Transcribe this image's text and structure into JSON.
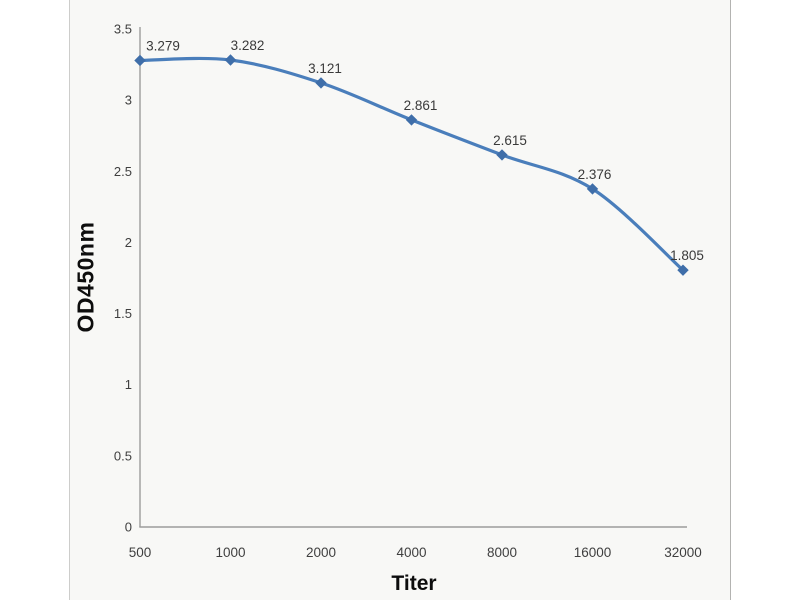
{
  "page": {
    "background_color": "#ffffff",
    "photo_background_color": "#f8f8f6"
  },
  "chart_data": {
    "type": "line",
    "title": "",
    "xlabel": "Titer",
    "ylabel": "OD450nm",
    "categories": [
      "500",
      "1000",
      "2000",
      "4000",
      "8000",
      "16000",
      "32000"
    ],
    "series": [
      {
        "name": "OD450nm",
        "values": [
          3.279,
          3.282,
          3.121,
          2.861,
          2.615,
          2.376,
          1.805
        ]
      }
    ],
    "point_labels": [
      "3.279",
      "3.282",
      "3.121",
      "2.861",
      "2.615",
      "2.376",
      "1.805"
    ],
    "ylim": [
      0,
      3.5
    ],
    "ytick_step": 0.5,
    "ytick_labels": [
      "0",
      "0.5",
      "1",
      "1.5",
      "2",
      "2.5",
      "3",
      "3.5"
    ],
    "grid": false,
    "legend_position": "none",
    "line_smooth": true,
    "marker_shape": "diamond",
    "colors": {
      "line": "#4a7ebb",
      "marker": "#3f6ea9",
      "axis": "#9c9c9c",
      "tick_label": "#3f3f3f",
      "data_label": "#3a3a3a",
      "axis_title": "#0d0d0d"
    }
  }
}
